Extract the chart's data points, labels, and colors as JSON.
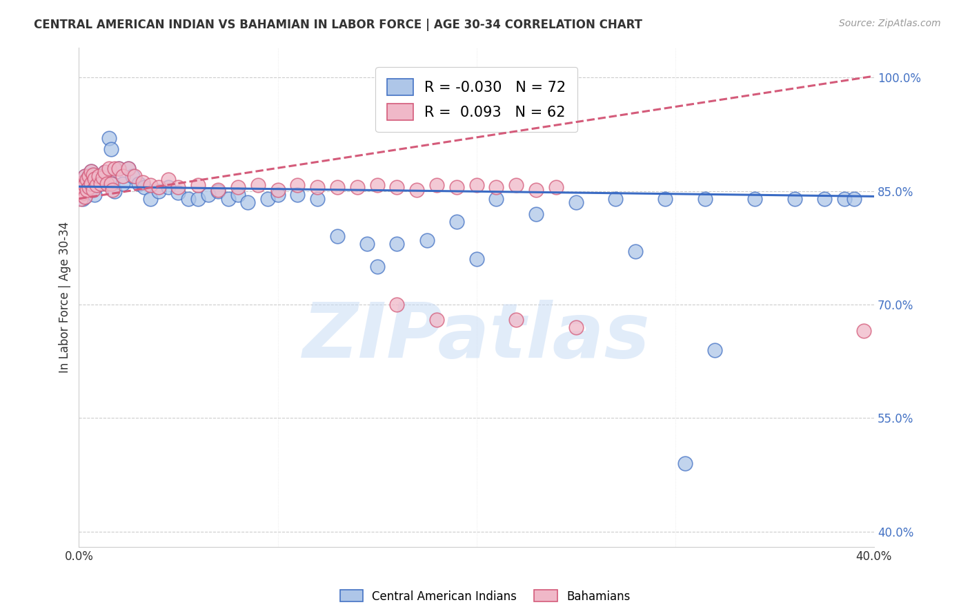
{
  "title": "CENTRAL AMERICAN INDIAN VS BAHAMIAN IN LABOR FORCE | AGE 30-34 CORRELATION CHART",
  "source": "Source: ZipAtlas.com",
  "ylabel": "In Labor Force | Age 30-34",
  "xlim": [
    0.0,
    0.4
  ],
  "ylim": [
    0.38,
    1.04
  ],
  "yticks": [
    0.4,
    0.55,
    0.7,
    0.85,
    1.0
  ],
  "ytick_labels": [
    "40.0%",
    "55.0%",
    "70.0%",
    "85.0%",
    "100.0%"
  ],
  "blue_R": -0.03,
  "blue_N": 72,
  "pink_R": 0.093,
  "pink_N": 62,
  "blue_color": "#aec6e8",
  "pink_color": "#f0b8c8",
  "blue_edge_color": "#4472c4",
  "pink_edge_color": "#d45b7a",
  "blue_line_color": "#3a6bc4",
  "pink_line_color": "#d45b7a",
  "legend_label_blue": "Central American Indians",
  "legend_label_pink": "Bahamians",
  "watermark": "ZIPatlas",
  "blue_line_x0": 0.0,
  "blue_line_y0": 0.856,
  "blue_line_x1": 0.4,
  "blue_line_y1": 0.843,
  "pink_line_x0": 0.0,
  "pink_line_y0": 0.84,
  "pink_line_x1": 0.4,
  "pink_line_y1": 1.002,
  "blue_x": [
    0.001,
    0.001,
    0.001,
    0.001,
    0.002,
    0.002,
    0.002,
    0.002,
    0.003,
    0.003,
    0.003,
    0.004,
    0.004,
    0.005,
    0.005,
    0.006,
    0.006,
    0.007,
    0.007,
    0.008,
    0.008,
    0.009,
    0.01,
    0.011,
    0.012,
    0.013,
    0.015,
    0.016,
    0.017,
    0.018,
    0.02,
    0.022,
    0.025,
    0.027,
    0.03,
    0.033,
    0.036,
    0.04,
    0.045,
    0.05,
    0.055,
    0.06,
    0.065,
    0.07,
    0.075,
    0.08,
    0.085,
    0.095,
    0.1,
    0.11,
    0.12,
    0.13,
    0.145,
    0.16,
    0.175,
    0.19,
    0.21,
    0.23,
    0.25,
    0.27,
    0.295,
    0.315,
    0.34,
    0.36,
    0.375,
    0.385,
    0.39,
    0.15,
    0.2,
    0.28,
    0.305,
    0.32
  ],
  "blue_y": [
    0.855,
    0.86,
    0.85,
    0.845,
    0.856,
    0.862,
    0.848,
    0.84,
    0.87,
    0.858,
    0.842,
    0.865,
    0.852,
    0.87,
    0.855,
    0.876,
    0.86,
    0.872,
    0.852,
    0.866,
    0.845,
    0.858,
    0.87,
    0.86,
    0.868,
    0.875,
    0.92,
    0.905,
    0.86,
    0.85,
    0.88,
    0.86,
    0.88,
    0.87,
    0.86,
    0.855,
    0.84,
    0.85,
    0.855,
    0.848,
    0.84,
    0.84,
    0.845,
    0.85,
    0.84,
    0.845,
    0.835,
    0.84,
    0.845,
    0.845,
    0.84,
    0.79,
    0.78,
    0.78,
    0.785,
    0.81,
    0.84,
    0.82,
    0.835,
    0.84,
    0.84,
    0.84,
    0.84,
    0.84,
    0.84,
    0.84,
    0.84,
    0.75,
    0.76,
    0.77,
    0.49,
    0.64
  ],
  "pink_x": [
    0.001,
    0.001,
    0.001,
    0.001,
    0.002,
    0.002,
    0.002,
    0.003,
    0.003,
    0.003,
    0.004,
    0.004,
    0.005,
    0.005,
    0.006,
    0.006,
    0.007,
    0.007,
    0.008,
    0.009,
    0.01,
    0.011,
    0.012,
    0.013,
    0.014,
    0.015,
    0.016,
    0.017,
    0.018,
    0.02,
    0.022,
    0.025,
    0.028,
    0.032,
    0.036,
    0.04,
    0.045,
    0.05,
    0.06,
    0.07,
    0.08,
    0.09,
    0.1,
    0.11,
    0.12,
    0.13,
    0.14,
    0.15,
    0.16,
    0.17,
    0.18,
    0.19,
    0.2,
    0.21,
    0.22,
    0.23,
    0.24,
    0.16,
    0.18,
    0.22,
    0.25,
    0.395
  ],
  "pink_y": [
    0.858,
    0.852,
    0.845,
    0.84,
    0.862,
    0.855,
    0.848,
    0.87,
    0.858,
    0.842,
    0.865,
    0.852,
    0.87,
    0.855,
    0.876,
    0.86,
    0.872,
    0.852,
    0.866,
    0.858,
    0.87,
    0.86,
    0.868,
    0.875,
    0.86,
    0.88,
    0.86,
    0.852,
    0.88,
    0.88,
    0.87,
    0.88,
    0.87,
    0.862,
    0.858,
    0.855,
    0.865,
    0.855,
    0.858,
    0.852,
    0.855,
    0.858,
    0.852,
    0.858,
    0.855,
    0.855,
    0.855,
    0.858,
    0.855,
    0.852,
    0.858,
    0.855,
    0.858,
    0.855,
    0.858,
    0.852,
    0.855,
    0.7,
    0.68,
    0.68,
    0.67,
    0.665
  ]
}
